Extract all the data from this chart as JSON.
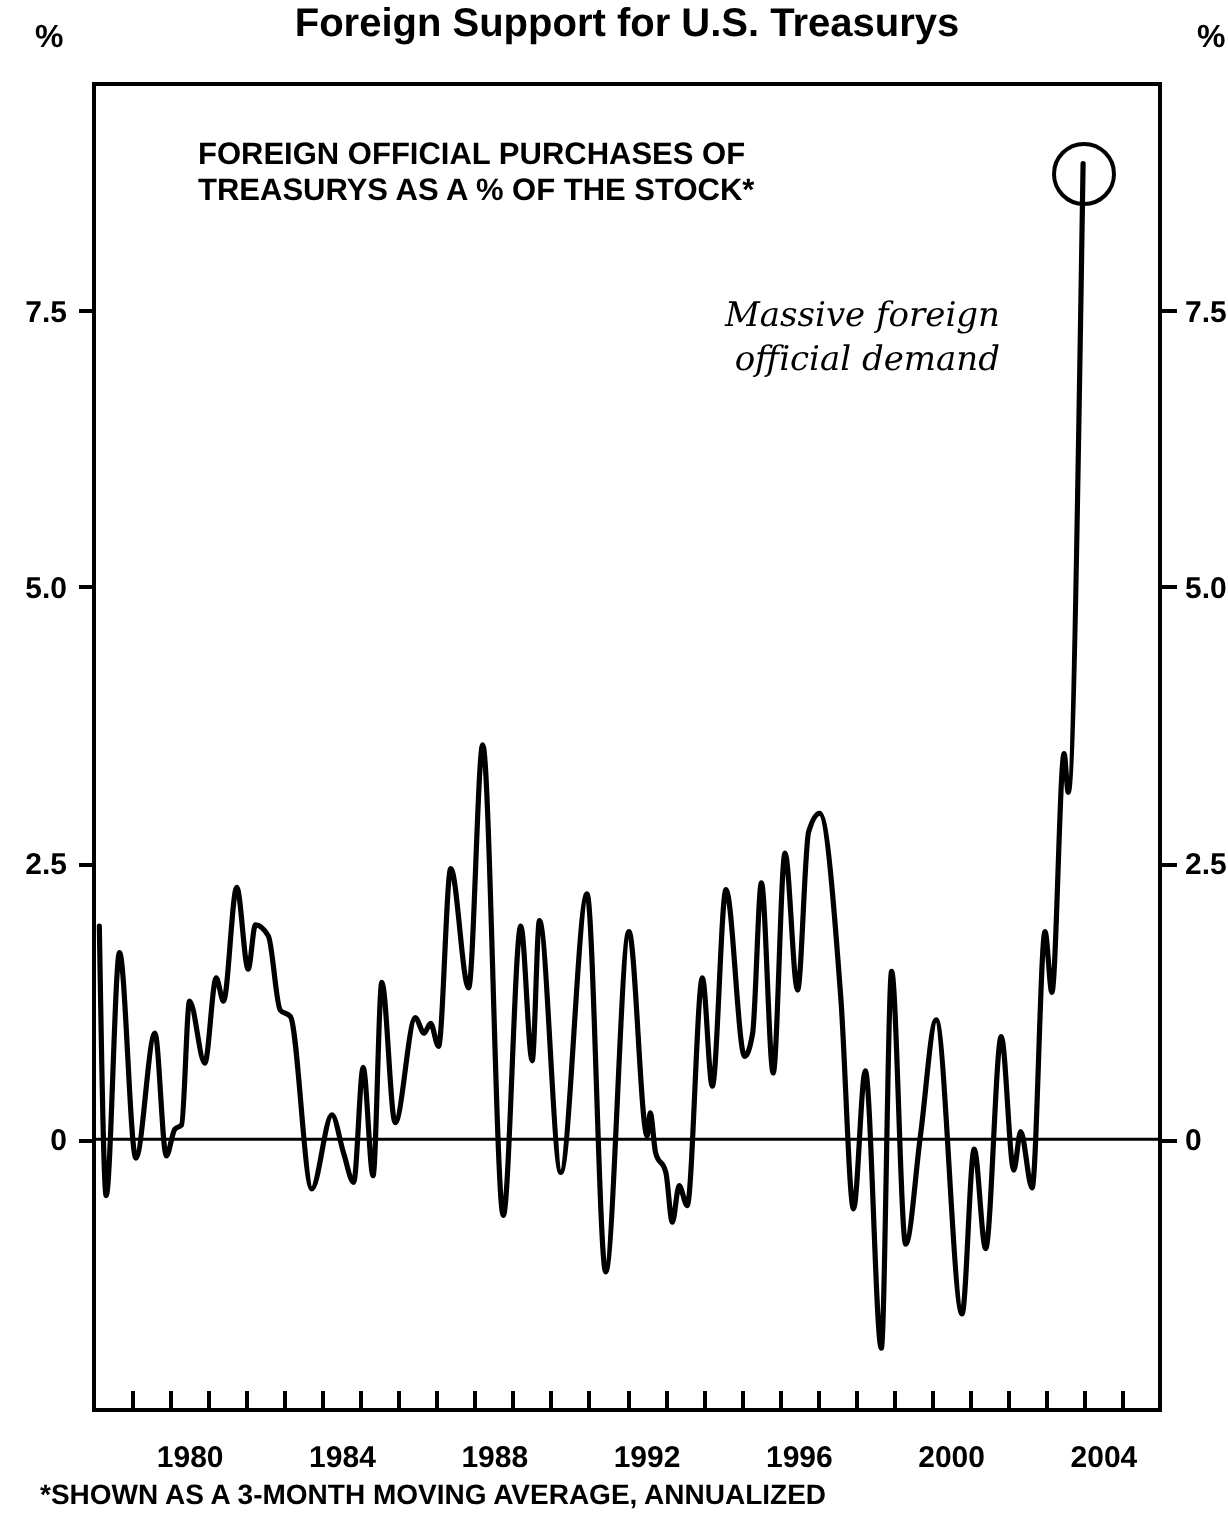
{
  "chart_data": {
    "type": "line",
    "title": "Foreign Support for U.S. Treasurys",
    "subtitle": "FOREIGN OFFICIAL PURCHASES OF\nTREASURYS AS A % OF THE STOCK*",
    "ylabel": "%",
    "y2label": "%",
    "annotations": [
      "Massive foreign\nofficial demand",
      "*SHOWN AS A 3-MONTH MOVING AVERAGE, ANNUALIZED"
    ],
    "xlim": [
      1978,
      2006
    ],
    "xticks": [
      {
        "value": 1979,
        "label": null
      },
      {
        "value": 1980,
        "label": null
      },
      {
        "value": 1981,
        "label": null
      },
      {
        "value": 1982,
        "label": null
      },
      {
        "value": 1983,
        "label": null
      },
      {
        "value": 1984,
        "label": null
      },
      {
        "value": 1985,
        "label": null
      },
      {
        "value": 1986,
        "label": null
      },
      {
        "value": 1987,
        "label": null
      },
      {
        "value": 1988,
        "label": null
      },
      {
        "value": 1989,
        "label": null
      },
      {
        "value": 1990,
        "label": null
      },
      {
        "value": 1991,
        "label": null
      },
      {
        "value": 1992,
        "label": null
      },
      {
        "value": 1993,
        "label": null
      },
      {
        "value": 1994,
        "label": null
      },
      {
        "value": 1995,
        "label": null
      },
      {
        "value": 1996,
        "label": null
      },
      {
        "value": 1997,
        "label": null
      },
      {
        "value": 1998,
        "label": null
      },
      {
        "value": 1999,
        "label": null
      },
      {
        "value": 2000,
        "label": null
      },
      {
        "value": 2001,
        "label": null
      },
      {
        "value": 2002,
        "label": null
      },
      {
        "value": 2003,
        "label": null
      },
      {
        "value": 2004,
        "label": null
      },
      {
        "value": 2005,
        "label": null
      },
      {
        "value": 1980.5,
        "label": "1980"
      },
      {
        "value": 1984.5,
        "label": "1984"
      },
      {
        "value": 1988.5,
        "label": "1988"
      },
      {
        "value": 1992.5,
        "label": "1992"
      },
      {
        "value": 1996.5,
        "label": "1996"
      },
      {
        "value": 2000.5,
        "label": "2000"
      },
      {
        "value": 2004.5,
        "label": "2004"
      }
    ],
    "ylim": [
      -2.45,
      9.55
    ],
    "yticks": [
      0,
      2.5,
      {
        "value": 5,
        "label": "5.0"
      },
      7.5
    ],
    "y2lim": [
      -2.45,
      9.55
    ],
    "y2ticks": [
      0,
      2.5,
      {
        "value": 5,
        "label": "5.0"
      },
      7.5
    ],
    "x": [
      1978.14,
      1978.32,
      1978.67,
      1979.1,
      1979.6,
      1979.9,
      1980.12,
      1980.3,
      1980.51,
      1980.91,
      1981.21,
      1981.4,
      1981.75,
      1982.05,
      1982.24,
      1982.58,
      1982.89,
      1983.16,
      1983.72,
      1984.25,
      1984.56,
      1984.82,
      1985.07,
      1985.33,
      1985.56,
      1985.91,
      1986.44,
      1986.67,
      1986.84,
      1987.05,
      1987.37,
      1987.84,
      1988.21,
      1988.75,
      1989.21,
      1989.51,
      1989.7,
      1990.26,
      1990.95,
      1991.44,
      1992.05,
      1992.53,
      1992.61,
      1992.75,
      1993.02,
      1993.19,
      1993.37,
      1993.58,
      1993.98,
      1994.24,
      1994.6,
      1995.09,
      1995.3,
      1995.53,
      1995.84,
      1996.15,
      1996.48,
      1996.77,
      1997.06,
      1997.62,
      1997.95,
      1998.26,
      1998.68,
      1998.95,
      1999.32,
      1999.71,
      2000.12,
      2000.8,
      2001.12,
      2001.42,
      2001.83,
      2002.16,
      2002.34,
      2002.64,
      2002.98,
      2003.16,
      2003.48,
      2003.59,
      2003.98
    ],
    "series": [
      {
        "color": "#000000",
        "values": [
          1.93,
          -0.51,
          1.69,
          -0.17,
          0.96,
          -0.15,
          0.09,
          0.13,
          1.25,
          0.69,
          1.46,
          1.25,
          2.28,
          1.54,
          1.94,
          1.84,
          1.17,
          1.11,
          -0.45,
          0.22,
          -0.13,
          -0.39,
          0.65,
          -0.33,
          1.42,
          0.15,
          1.1,
          0.96,
          1.05,
          0.84,
          2.45,
          1.37,
          3.57,
          -0.69,
          1.93,
          0.71,
          1.98,
          -0.3,
          2.22,
          -1.2,
          1.88,
          0.03,
          0.24,
          -0.12,
          -0.3,
          -0.75,
          -0.42,
          -0.6,
          1.46,
          0.48,
          2.26,
          0.75,
          0.96,
          2.32,
          0.6,
          2.59,
          1.35,
          2.78,
          2.95,
          1.26,
          -0.63,
          0.62,
          -1.89,
          1.52,
          -0.95,
          0.04,
          1.08,
          -1.58,
          -0.09,
          -0.99,
          0.93,
          -0.28,
          0.07,
          -0.44,
          1.88,
          1.33,
          3.49,
          3.14,
          8.83
        ]
      }
    ],
    "ref_lines": [
      {
        "axis": "y",
        "value": 0,
        "color": "#000000"
      }
    ],
    "line_style": "solid",
    "marker": "none",
    "grid": false,
    "legend": false
  }
}
